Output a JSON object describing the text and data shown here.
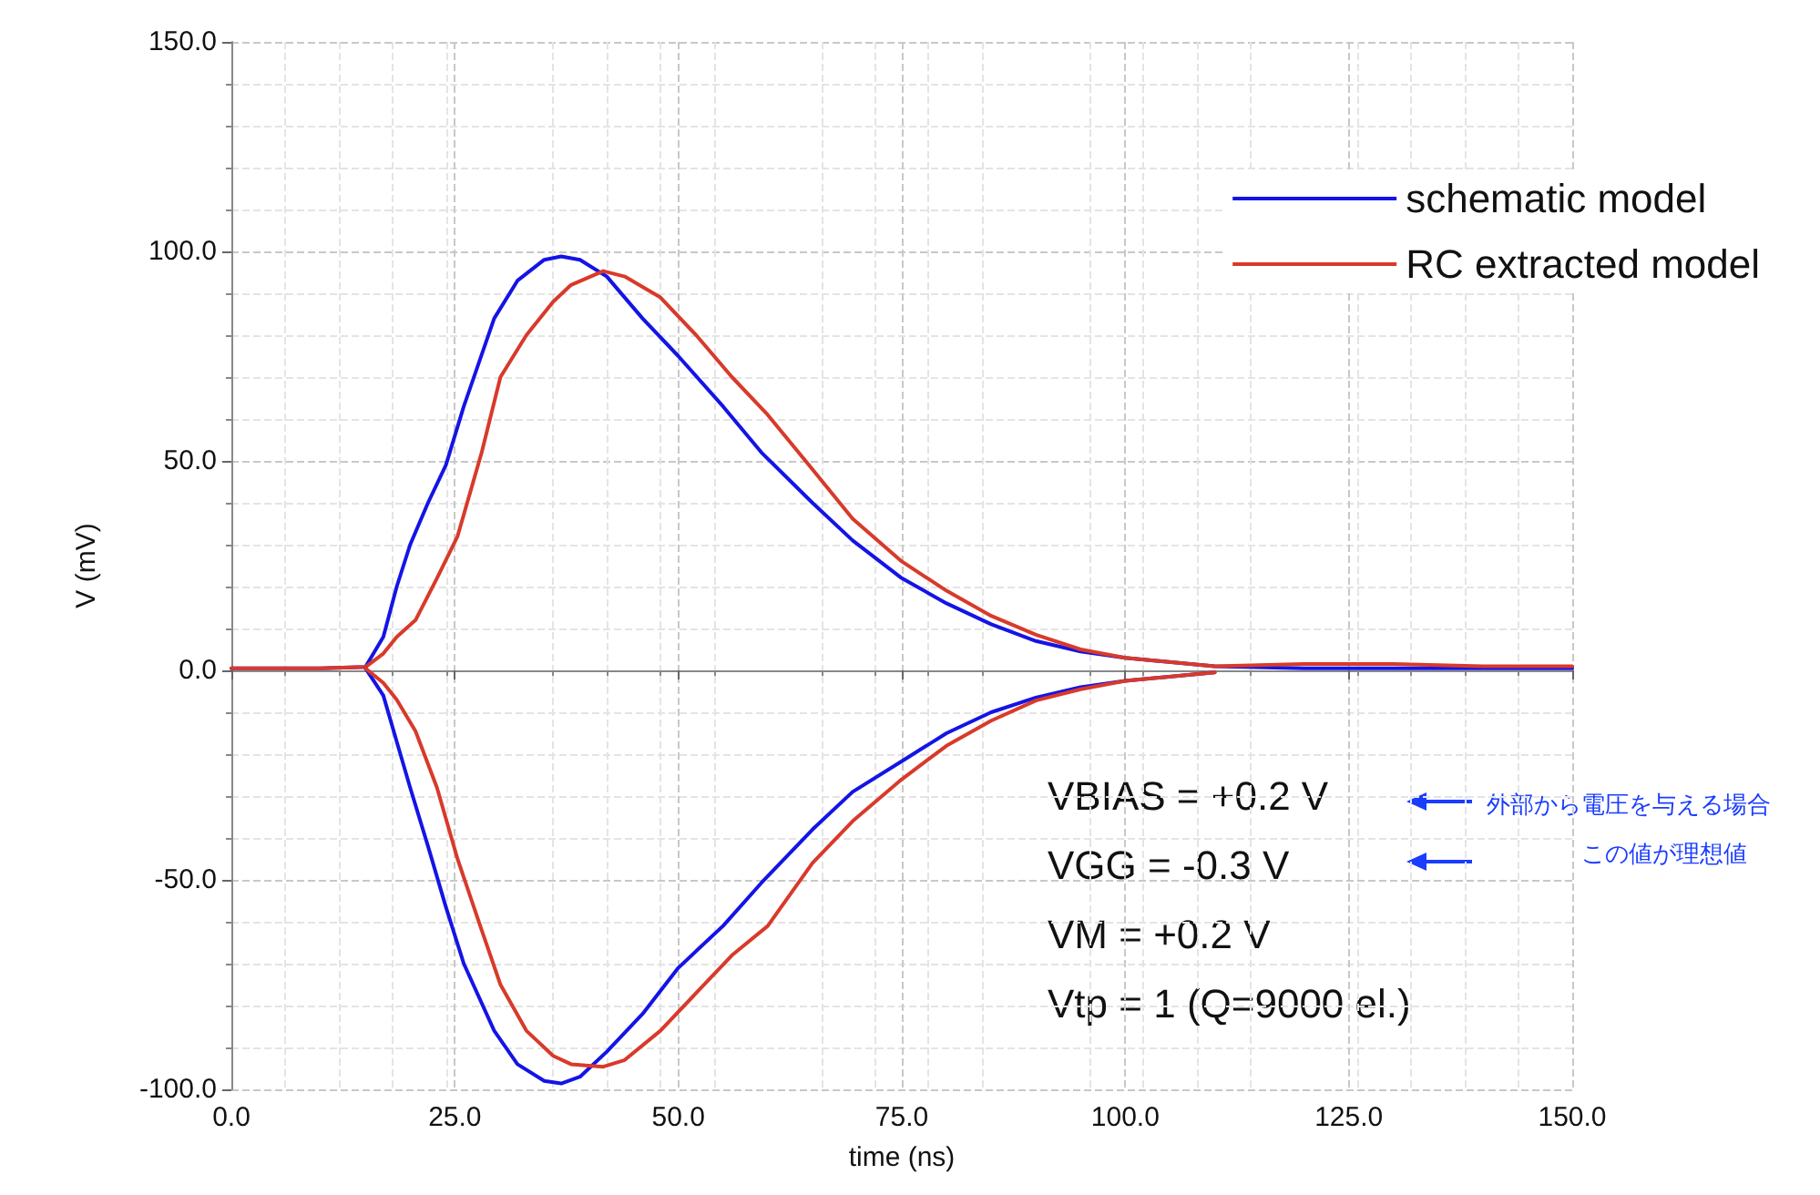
{
  "chart_data": {
    "type": "line",
    "xlabel": "time (ns)",
    "ylabel": "V (mV)",
    "xlim": [
      0,
      150
    ],
    "xticks": [
      {
        "value": 0,
        "label": "0.0"
      },
      {
        "value": 25,
        "label": "25.0"
      },
      {
        "value": 50,
        "label": "50.0"
      },
      {
        "value": 75,
        "label": "75.0"
      },
      {
        "value": 100,
        "label": "100.0"
      },
      {
        "value": 125,
        "label": "125.0"
      },
      {
        "value": 150,
        "label": "150.0"
      }
    ],
    "ylim": [
      -100,
      150
    ],
    "yticks": [
      {
        "value": -100,
        "label": "-100.0"
      },
      {
        "value": -50,
        "label": "-50.0"
      },
      {
        "value": 0,
        "label": "0.0"
      },
      {
        "value": 50,
        "label": "50.0"
      },
      {
        "value": 100,
        "label": "100.0"
      },
      {
        "value": 150,
        "label": "150.0"
      }
    ],
    "grid": true,
    "legend": "top right",
    "marker": "none",
    "line_style": "solid",
    "annotations": [
      "VBIAS = +0.2 V",
      "VGG = -0.3 V",
      "VM = +0.2 V",
      "Vtp = 1 (Q=9000 el.)",
      "外部から電圧を与える場合",
      "この値が理想値"
    ],
    "series": [
      {
        "name": "schematic model",
        "color": "#1414e6",
        "x": [
          0,
          10,
          15,
          17,
          18.5,
          20,
          22,
          24,
          26,
          29.4,
          32,
          35,
          36.9,
          39,
          42,
          46,
          50,
          55,
          59.3,
          65,
          69.5,
          75,
          80,
          85,
          90,
          95,
          100,
          110,
          120,
          130,
          140,
          150
        ],
        "values": [
          0.5,
          0.5,
          0.8,
          8,
          20,
          30,
          40,
          49,
          63,
          84,
          93,
          98,
          98.8,
          98,
          94,
          84,
          75,
          63,
          52,
          40,
          31,
          22,
          16,
          11,
          7,
          4.5,
          3,
          1,
          0.5,
          0.5,
          0.5,
          0.5
        ]
      },
      {
        "name": "RC extracted model",
        "color": "#d83a2a",
        "x": [
          0,
          10,
          15,
          17,
          18.5,
          20.6,
          23,
          25.3,
          28,
          30.1,
          33,
          36,
          38,
          41.6,
          44,
          48,
          52,
          56,
          60,
          65,
          69.5,
          75,
          80,
          85,
          90,
          95,
          100,
          110,
          120,
          130,
          140,
          150
        ],
        "values": [
          0.5,
          0.5,
          0.8,
          4,
          8,
          12,
          22,
          32,
          52,
          70,
          80,
          88,
          92,
          95.3,
          94,
          89,
          80,
          70,
          61,
          48,
          36.2,
          26,
          19,
          13,
          8.5,
          5,
          3,
          1,
          1.5,
          1.5,
          1,
          1
        ]
      },
      {
        "color": "#1414e6",
        "x": [
          15,
          17,
          18.5,
          20,
          22,
          24,
          26,
          29.4,
          32,
          35,
          36.9,
          39,
          42,
          46,
          50,
          55,
          59.3,
          65,
          69.5,
          75,
          80,
          85,
          90,
          95,
          100,
          110
        ],
        "values": [
          0.5,
          -6,
          -17,
          -28,
          -42,
          -56.5,
          -70,
          -86,
          -94,
          -98,
          -98.6,
          -97,
          -91,
          -82,
          -71,
          -61,
          -50.7,
          -38,
          -29,
          -21.7,
          -15,
          -10,
          -6.5,
          -4,
          -2.5,
          -0.5
        ]
      },
      {
        "color": "#d83a2a",
        "x": [
          15,
          17,
          18.5,
          20.6,
          23,
          25.3,
          28,
          30.1,
          33,
          36,
          38,
          41.6,
          44,
          48,
          52,
          56,
          60,
          65,
          69.5,
          75,
          80,
          85,
          90,
          95,
          100,
          110
        ],
        "values": [
          0.5,
          -3,
          -7,
          -14.5,
          -28,
          -45,
          -62,
          -75,
          -86,
          -92,
          -94,
          -94.6,
          -93,
          -86,
          -77,
          -68,
          -61,
          -46,
          -36,
          -26,
          -18,
          -12,
          -7.2,
          -4.5,
          -2.5,
          -0.5
        ]
      }
    ]
  }
}
